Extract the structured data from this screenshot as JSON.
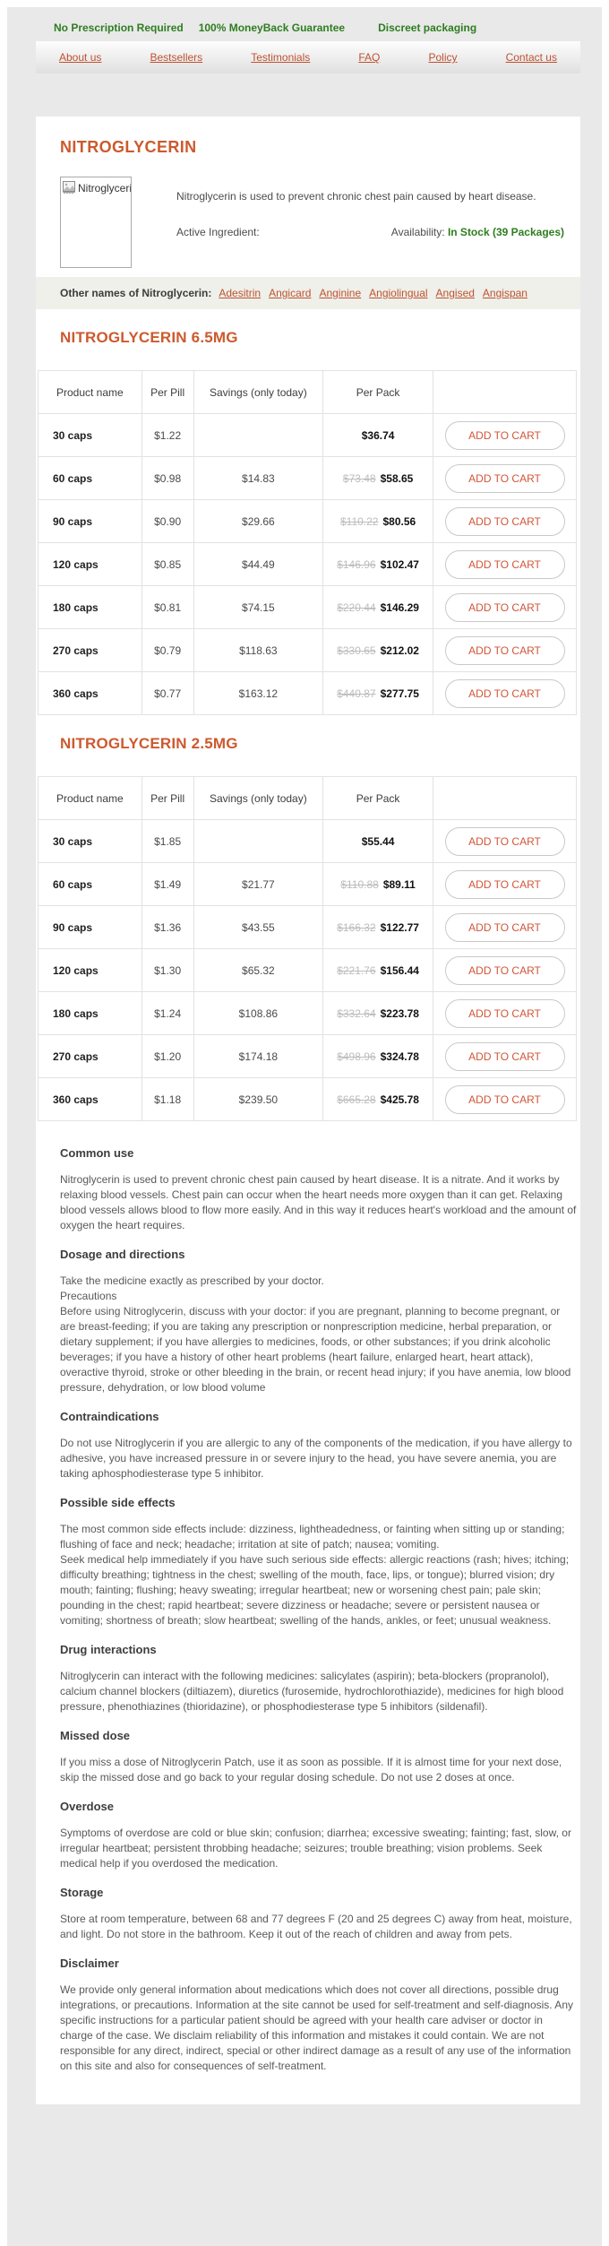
{
  "colors": {
    "accent_orange": "#cc5a2e",
    "link_orange": "#bf5130",
    "button_orange": "#d25539",
    "green": "#2e7d1f",
    "body_text": "#58595b",
    "strike_price": "#bcbcbc",
    "other_names_band": "#eef0e9"
  },
  "topbar": {
    "items": [
      "No Prescription Required",
      "100% MoneyBack Guarantee",
      "Discreet packaging"
    ]
  },
  "nav": {
    "items": [
      "About us",
      "Bestsellers",
      "Testimonials",
      "FAQ",
      "Policy",
      "Contact us"
    ]
  },
  "product": {
    "title": "NITROGLYCERIN",
    "thumb_label": "Nitroglycerin",
    "thumb_icon": "broken-image-icon",
    "description": "Nitroglycerin is used to prevent chronic chest pain caused by heart disease.",
    "active_ingredient_label": "Active Ingredient:",
    "availability_label": "Availability:",
    "availability_value": "In Stock (39 Packages)",
    "other_names_label": "Other names of Nitroglycerin:",
    "other_names": [
      "Adesitrin",
      "Angicard",
      "Anginine",
      "Angiolingual",
      "Angised",
      "Angispan"
    ]
  },
  "cart_button_label": "ADD TO CART",
  "table_headers": [
    "Product name",
    "Per Pill",
    "Savings (only today)",
    "Per Pack",
    ""
  ],
  "tables": [
    {
      "title": "NITROGLYCERIN 6.5MG",
      "rows": [
        {
          "name": "30 caps",
          "per_pill": "$1.22",
          "savings": "",
          "old_price": "",
          "price": "$36.74"
        },
        {
          "name": "60 caps",
          "per_pill": "$0.98",
          "savings": "$14.83",
          "old_price": "$73.48",
          "price": "$58.65"
        },
        {
          "name": "90 caps",
          "per_pill": "$0.90",
          "savings": "$29.66",
          "old_price": "$110.22",
          "price": "$80.56"
        },
        {
          "name": "120 caps",
          "per_pill": "$0.85",
          "savings": "$44.49",
          "old_price": "$146.96",
          "price": "$102.47"
        },
        {
          "name": "180 caps",
          "per_pill": "$0.81",
          "savings": "$74.15",
          "old_price": "$220.44",
          "price": "$146.29"
        },
        {
          "name": "270 caps",
          "per_pill": "$0.79",
          "savings": "$118.63",
          "old_price": "$330.65",
          "price": "$212.02"
        },
        {
          "name": "360 caps",
          "per_pill": "$0.77",
          "savings": "$163.12",
          "old_price": "$440.87",
          "price": "$277.75"
        }
      ]
    },
    {
      "title": "NITROGLYCERIN 2.5MG",
      "rows": [
        {
          "name": "30 caps",
          "per_pill": "$1.85",
          "savings": "",
          "old_price": "",
          "price": "$55.44"
        },
        {
          "name": "60 caps",
          "per_pill": "$1.49",
          "savings": "$21.77",
          "old_price": "$110.88",
          "price": "$89.11"
        },
        {
          "name": "90 caps",
          "per_pill": "$1.36",
          "savings": "$43.55",
          "old_price": "$166.32",
          "price": "$122.77"
        },
        {
          "name": "120 caps",
          "per_pill": "$1.30",
          "savings": "$65.32",
          "old_price": "$221.76",
          "price": "$156.44"
        },
        {
          "name": "180 caps",
          "per_pill": "$1.24",
          "savings": "$108.86",
          "old_price": "$332.64",
          "price": "$223.78"
        },
        {
          "name": "270 caps",
          "per_pill": "$1.20",
          "savings": "$174.18",
          "old_price": "$498.96",
          "price": "$324.78"
        },
        {
          "name": "360 caps",
          "per_pill": "$1.18",
          "savings": "$239.50",
          "old_price": "$665.28",
          "price": "$425.78"
        }
      ]
    }
  ],
  "sections": [
    {
      "heading": "Common use",
      "body": "Nitroglycerin is used to prevent chronic chest pain caused by heart disease. It is a nitrate. And it works by relaxing blood vessels. Chest pain can occur when the heart needs more oxygen than it can get. Relaxing blood vessels allows blood to flow more easily. And in this way it reduces heart's workload and the amount of oxygen  the heart requires."
    },
    {
      "heading": "Dosage and directions",
      "body": "Take the medicine exactly as prescribed by your doctor.\nPrecautions\nBefore using Nitroglycerin, discuss with your doctor: if you are pregnant, planning to become pregnant, or are breast-feeding; if you are taking any prescription or nonprescription medicine, herbal preparation, or dietary supplement; if you have allergies to medicines, foods, or other substances; if you drink alcoholic beverages; if you have a history of other heart problems (heart failure, enlarged heart, heart attack), overactive thyroid, stroke or other bleeding in the brain, or recent head injury; if you have anemia, low blood pressure, dehydration, or low blood volume"
    },
    {
      "heading": "Contraindications",
      "body": "Do not use Nitroglycerin if you are allergic to any of the components of the medication, if you have allergy to adhesive, you have increased pressure in or severe injury to the head, you have severe anemia, you are taking aphosphodiesterase type 5 inhibitor."
    },
    {
      "heading": "Possible side effects",
      "body": "The most common side effects include: dizziness, lightheadedness, or fainting when sitting up or standing; flushing of face and neck; headache; irritation at site of patch; nausea; vomiting.\nSeek medical help immediately if you have such serious side effects: allergic reactions (rash; hives; itching; difficulty breathing; tightness in the chest; swelling of the mouth, face, lips, or tongue); blurred vision; dry mouth; fainting; flushing; heavy sweating; irregular heartbeat; new or worsening chest pain; pale skin; pounding in the chest; rapid heartbeat; severe dizziness or headache; severe or persistent nausea or vomiting; shortness of breath; slow heartbeat; swelling of the hands, ankles, or feet; unusual weakness."
    },
    {
      "heading": "Drug interactions",
      "body": "Nitroglycerin can interact with the following medicines: salicylates (aspirin); beta-blockers (propranolol), calcium channel blockers (diltiazem), diuretics (furosemide, hydrochlorothiazide), medicines for high blood pressure, phenothiazines (thioridazine), or phosphodiesterase type 5 inhibitors (sildenafil)."
    },
    {
      "heading": "Missed dose",
      "body": "If you miss a dose of Nitroglycerin Patch, use it as soon as possible. If it is almost time for your next dose, skip the missed dose and go back to your regular dosing schedule. Do not use 2 doses at once."
    },
    {
      "heading": "Overdose",
      "body": "Symptoms of overdose are cold or blue skin; confusion; diarrhea; excessive sweating; fainting; fast, slow, or irregular heartbeat; persistent throbbing headache; seizures; trouble breathing; vision problems. Seek medical help if you overdosed the medication."
    },
    {
      "heading": "Storage",
      "body": "Store at room temperature, between 68 and 77 degrees F (20 and 25 degrees C) away from heat, moisture, and light. Do not store in the bathroom. Keep it out of the reach of children and away from pets."
    },
    {
      "heading": "Disclaimer",
      "body": "We provide only general information about medications which does not cover all directions, possible drug integrations, or precautions. Information at the site cannot be used for self-treatment and self-diagnosis. Any specific instructions for a particular patient should be agreed with your health care adviser or doctor in charge of the case. We disclaim reliability of this information and mistakes it could contain. We are not responsible for any direct, indirect, special or other indirect damage as a result of any use of the information on this site and also for consequences of self-treatment."
    }
  ]
}
